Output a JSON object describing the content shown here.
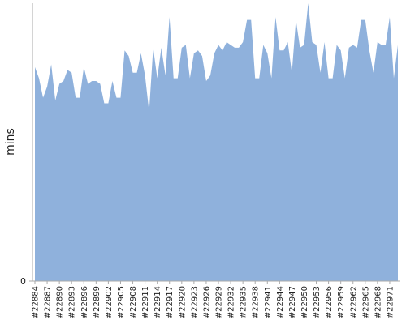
{
  "chart_data": {
    "type": "area",
    "y_label": "mins",
    "categories": [
      "#22884",
      null,
      null,
      "#22887",
      null,
      null,
      "#22890",
      null,
      null,
      "#22893",
      null,
      null,
      "#22896",
      null,
      null,
      "#22899",
      null,
      null,
      "#22902",
      null,
      null,
      "#22905",
      null,
      null,
      "#22908",
      null,
      null,
      "#22911",
      null,
      null,
      "#22914",
      null,
      null,
      "#22917",
      null,
      null,
      "#22920",
      null,
      null,
      "#22923",
      null,
      null,
      "#22926",
      null,
      null,
      "#22929",
      null,
      null,
      "#22932",
      null,
      null,
      "#22935",
      null,
      null,
      "#22938",
      null,
      null,
      "#22941",
      null,
      null,
      "#22944",
      null,
      null,
      "#22947",
      null,
      null,
      "#22950",
      null,
      null,
      "#22953",
      null,
      null,
      "#22956",
      null,
      null,
      "#22959",
      null,
      null,
      "#22962",
      null,
      null,
      "#22965",
      null,
      null,
      "#22968",
      null,
      null,
      "#22971",
      null,
      null
    ],
    "values": [
      77,
      73,
      66,
      70,
      78,
      65,
      71,
      72,
      76,
      75,
      66,
      66,
      77,
      71,
      72,
      72,
      71,
      64,
      64,
      72,
      66,
      66,
      83,
      81,
      75,
      75,
      82,
      74,
      61,
      84,
      73,
      84,
      74,
      95,
      73,
      73,
      84,
      85,
      73,
      82,
      83,
      81,
      72,
      74,
      82,
      85,
      83,
      86,
      85,
      84,
      84,
      86,
      94,
      94,
      73,
      73,
      85,
      82,
      73,
      95,
      83,
      83,
      86,
      75,
      94,
      84,
      85,
      100,
      86,
      85,
      75,
      86,
      73,
      73,
      85,
      83,
      73,
      84,
      85,
      84,
      94,
      94,
      83,
      75,
      86,
      85,
      85,
      95,
      73,
      85
    ],
    "color": "#8fb1dc",
    "ylim": [
      0,
      100
    ],
    "yticks": [
      0
    ]
  }
}
